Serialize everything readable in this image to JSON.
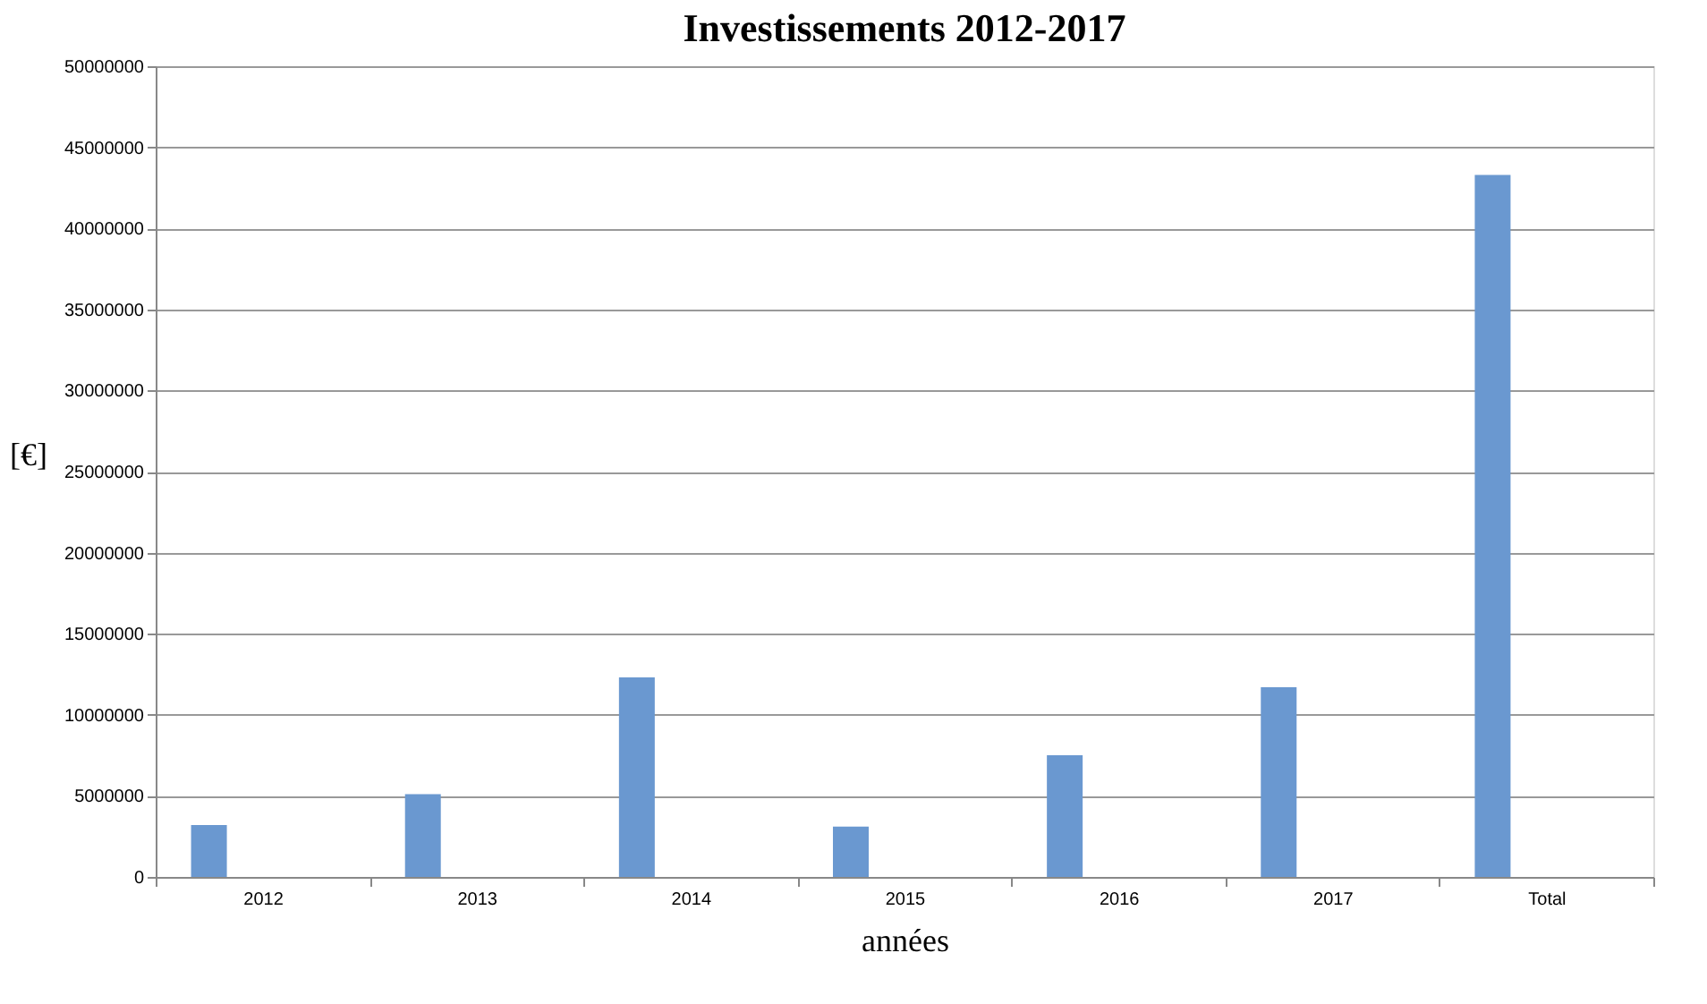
{
  "chart_data": {
    "type": "bar",
    "title": "Investissements 2012-2017",
    "xlabel": "années",
    "ylabel": "[€]",
    "categories": [
      "2012",
      "2013",
      "2014",
      "2015",
      "2016",
      "2017",
      "Total"
    ],
    "values": [
      3200000,
      5100000,
      12300000,
      3100000,
      7500000,
      11700000,
      43300000
    ],
    "color": "#6a98d0",
    "ylim": [
      0,
      50000000
    ],
    "yticks": [
      0,
      5000000,
      10000000,
      15000000,
      20000000,
      25000000,
      30000000,
      35000000,
      40000000,
      45000000,
      50000000
    ],
    "grid": "y"
  }
}
